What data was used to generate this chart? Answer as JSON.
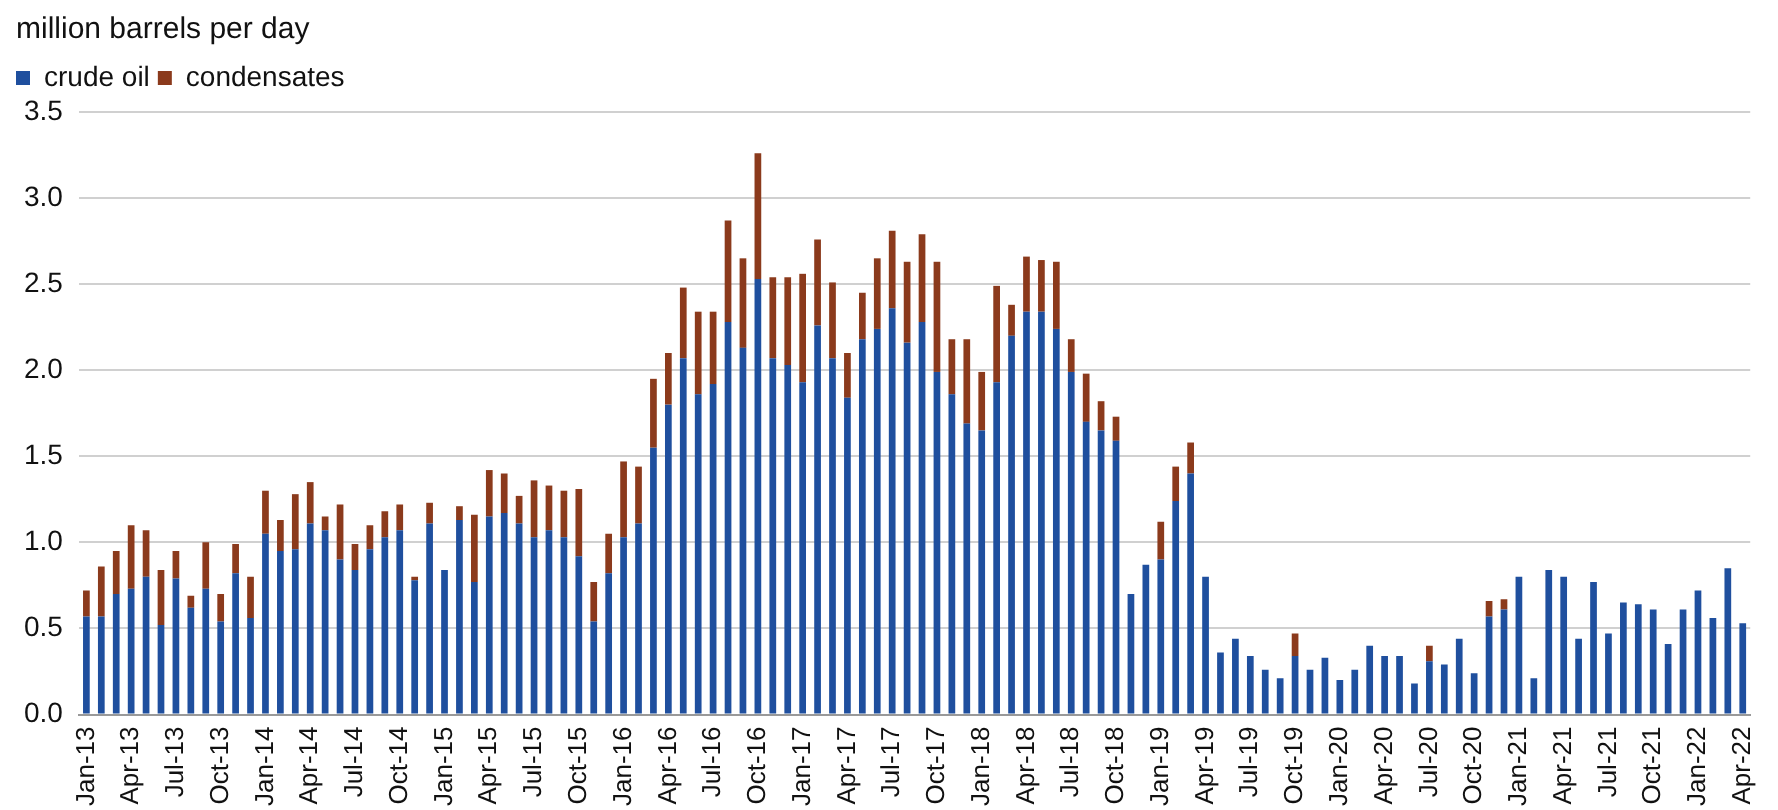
{
  "chart_data": {
    "type": "bar",
    "stacked": true,
    "ylabel": "million barrels per day",
    "categories": [
      "Jan-13",
      null,
      null,
      "Apr-13",
      null,
      null,
      "Jul-13",
      null,
      null,
      "Oct-13",
      null,
      null,
      "Jan-14",
      null,
      null,
      "Apr-14",
      null,
      null,
      "Jul-14",
      null,
      null,
      "Oct-14",
      null,
      null,
      "Jan-15",
      null,
      null,
      "Apr-15",
      null,
      null,
      "Jul-15",
      null,
      null,
      "Oct-15",
      null,
      null,
      "Jan-16",
      null,
      null,
      "Apr-16",
      null,
      null,
      "Jul-16",
      null,
      null,
      "Oct-16",
      null,
      null,
      "Jan-17",
      null,
      null,
      "Apr-17",
      null,
      null,
      "Jul-17",
      null,
      null,
      "Oct-17",
      null,
      null,
      "Jan-18",
      null,
      null,
      "Apr-18",
      null,
      null,
      "Jul-18",
      null,
      null,
      "Oct-18",
      null,
      null,
      "Jan-19",
      null,
      null,
      "Apr-19",
      null,
      null,
      "Jul-19",
      null,
      null,
      "Oct-19",
      null,
      null,
      "Jan-20",
      null,
      null,
      "Apr-20",
      null,
      null,
      "Jul-20",
      null,
      null,
      "Oct-20",
      null,
      null,
      "Jan-21",
      null,
      null,
      "Apr-21",
      null,
      null,
      "Jul-21",
      null,
      null,
      "Oct-21",
      null,
      null,
      "Jan-22",
      null,
      null,
      "Apr-22"
    ],
    "series": [
      {
        "name": "crude oil",
        "color": "#1f4f9e",
        "values": [
          0.57,
          0.57,
          0.7,
          0.73,
          0.8,
          0.52,
          0.79,
          0.62,
          0.73,
          0.54,
          0.82,
          0.56,
          1.05,
          0.95,
          0.96,
          1.11,
          1.07,
          0.9,
          0.84,
          0.96,
          1.03,
          1.07,
          0.78,
          1.11,
          0.84,
          1.13,
          0.77,
          1.15,
          1.17,
          1.11,
          1.03,
          1.07,
          1.03,
          0.92,
          0.54,
          0.82,
          1.03,
          1.11,
          1.55,
          1.8,
          2.07,
          1.86,
          1.92,
          2.28,
          2.13,
          2.53,
          2.07,
          2.03,
          1.93,
          2.26,
          2.07,
          1.84,
          2.18,
          2.24,
          2.36,
          2.16,
          2.28,
          1.99,
          1.86,
          1.69,
          1.65,
          1.93,
          2.2,
          2.34,
          2.34,
          2.24,
          1.99,
          1.7,
          1.65,
          1.59,
          0.7,
          0.87,
          0.9,
          1.24,
          1.4,
          0.8,
          0.36,
          0.44,
          0.34,
          0.26,
          0.21,
          0.34,
          0.26,
          0.33,
          0.2,
          0.26,
          0.4,
          0.34,
          0.34,
          0.18,
          0.31,
          0.29,
          0.44,
          0.24,
          0.57,
          0.61,
          0.8,
          0.21,
          0.84,
          0.8,
          0.44,
          0.77,
          0.47,
          0.65,
          0.64,
          0.61,
          0.41,
          0.61,
          0.72,
          0.56,
          0.85,
          0.53
        ]
      },
      {
        "name": "condensates",
        "color": "#8b3a1c",
        "values": [
          0.15,
          0.29,
          0.25,
          0.37,
          0.27,
          0.32,
          0.16,
          0.07,
          0.27,
          0.16,
          0.17,
          0.24,
          0.25,
          0.18,
          0.32,
          0.24,
          0.08,
          0.32,
          0.15,
          0.14,
          0.15,
          0.15,
          0.02,
          0.12,
          0,
          0.08,
          0.39,
          0.27,
          0.23,
          0.16,
          0.33,
          0.26,
          0.27,
          0.39,
          0.23,
          0.23,
          0.44,
          0.33,
          0.4,
          0.3,
          0.41,
          0.48,
          0.42,
          0.59,
          0.52,
          0.73,
          0.47,
          0.51,
          0.63,
          0.5,
          0.44,
          0.26,
          0.27,
          0.41,
          0.45,
          0.47,
          0.51,
          0.64,
          0.32,
          0.49,
          0.34,
          0.56,
          0.18,
          0.32,
          0.3,
          0.39,
          0.19,
          0.28,
          0.17,
          0.14,
          0,
          0,
          0.22,
          0.2,
          0.18,
          0,
          0,
          0,
          0,
          0,
          0,
          0.13,
          0,
          0,
          0,
          0,
          0,
          0,
          0,
          0,
          0.09,
          0,
          0,
          0,
          0.09,
          0.06,
          0,
          0,
          0,
          0,
          0,
          0,
          0,
          0,
          0,
          0,
          0,
          0,
          0,
          0,
          0,
          0
        ]
      }
    ],
    "ylim": [
      0,
      3.5
    ],
    "yticks": [
      {
        "value": 0,
        "label": "0.0"
      },
      0.5,
      {
        "value": 1,
        "label": "1.0"
      },
      1.5,
      {
        "value": 2,
        "label": "2.0"
      },
      2.5,
      {
        "value": 3,
        "label": "3.0"
      },
      3.5
    ],
    "grid": "y",
    "legend": "top left"
  }
}
